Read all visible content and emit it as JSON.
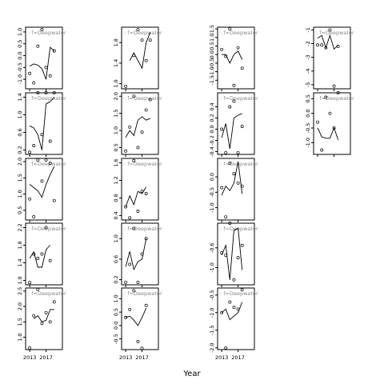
{
  "chart_data": {
    "type": "line",
    "xlabel": "Year",
    "x_ticks": [
      2013,
      2017
    ],
    "xlim": [
      2012,
      2021
    ],
    "panels": [
      {
        "col": 0,
        "row": 0,
        "strip": "f=Deepwater",
        "ylim": [
          -1.4,
          1.2
        ],
        "yticks": [
          1.0,
          0.5,
          0.0,
          -0.5,
          -1.0
        ],
        "line": {
          "x": [
            2013,
            2014,
            2015,
            2016,
            2017,
            2018,
            2019
          ],
          "y": [
            -0.45,
            -0.35,
            -0.4,
            -0.55,
            -1.0,
            0.35,
            0.2
          ]
        },
        "points": {
          "x": [
            2013,
            2014,
            2015,
            2016,
            2017,
            2018,
            2019
          ],
          "y": [
            -0.75,
            -1.15,
            0.4,
            1.1,
            -0.5,
            -0.85,
            0.2
          ]
        }
      },
      {
        "col": 1,
        "row": 0,
        "strip": "f=Deepwater",
        "ylim": [
          0.9,
          2.1
        ],
        "yticks": [
          1.0,
          1.4,
          1.8
        ],
        "line": {
          "x": [
            2014,
            2015,
            2017,
            2018,
            2019
          ],
          "y": [
            1.45,
            1.6,
            1.3,
            1.8,
            2.0
          ]
        },
        "points": {
          "x": [
            2013,
            2015,
            2016,
            2017,
            2018,
            2019
          ],
          "y": [
            0.95,
            1.55,
            2.05,
            1.85,
            1.45,
            1.85
          ]
        }
      },
      {
        "col": 2,
        "row": 0,
        "strip": "f=Deepwater",
        "ylim": [
          -2.0,
          1.6
        ],
        "yticks": [
          1.5,
          1.0,
          0.5,
          0.0,
          -0.5,
          -1.0,
          -1.5
        ],
        "line": {
          "x": [
            2013,
            2014,
            2015,
            2016,
            2017,
            2018
          ],
          "y": [
            0.0,
            0.0,
            -0.5,
            0.0,
            0.2,
            -0.3
          ]
        },
        "points": {
          "x": [
            2013,
            2014,
            2015,
            2016,
            2017,
            2018
          ],
          "y": [
            0.3,
            -0.1,
            1.5,
            -1.8,
            0.4,
            -0.8
          ]
        }
      },
      {
        "col": 3,
        "row": 0,
        "strip": "f=Deepwater",
        "ylim": [
          -5.3,
          -0.8
        ],
        "yticks": [
          -1,
          -2,
          -3,
          -4,
          -5
        ],
        "line": {
          "x": [
            2013,
            2014,
            2015,
            2016,
            2017,
            2018
          ],
          "y": [
            -1.6,
            -1.4,
            -2.3,
            -1.4,
            -2.4,
            -2.1
          ]
        },
        "points": {
          "x": [
            2013,
            2014,
            2015,
            2016,
            2017,
            2018
          ],
          "y": [
            -2.1,
            -2.1,
            -2.3,
            -1.0,
            -5.1,
            -2.2
          ]
        }
      },
      {
        "col": 0,
        "row": 1,
        "strip": "f=Deepwater",
        "ylim": [
          0.1,
          1.5
        ],
        "yticks": [
          1.4,
          1.0,
          0.6,
          0.2
        ],
        "line": {
          "x": [
            2013,
            2014,
            2015,
            2016,
            2017,
            2018,
            2019
          ],
          "y": [
            0.75,
            0.7,
            0.55,
            0.2,
            1.25,
            1.3,
            1.4
          ]
        },
        "points": {
          "x": [
            2013,
            2014,
            2015,
            2016,
            2017,
            2018,
            2019
          ],
          "y": [
            0.15,
            0.3,
            1.5,
            0.55,
            1.5,
            0.4,
            1.5
          ]
        }
      },
      {
        "col": 1,
        "row": 1,
        "strip": "f=Deepwater",
        "ylim": [
          0.3,
          2.1
        ],
        "yticks": [
          2.0,
          1.5,
          1.0,
          0.5
        ],
        "line": {
          "x": [
            2013,
            2014,
            2015,
            2016,
            2017,
            2018,
            2019
          ],
          "y": [
            0.8,
            1.0,
            0.85,
            1.3,
            1.4,
            1.3,
            1.35
          ]
        },
        "points": {
          "x": [
            2013,
            2014,
            2015,
            2016,
            2017,
            2018,
            2019
          ],
          "y": [
            0.4,
            1.1,
            2.0,
            0.5,
            0.95,
            1.6,
            1.9
          ]
        }
      },
      {
        "col": 2,
        "row": 1,
        "strip": "f=Deepwater",
        "ylim": [
          -0.45,
          0.65
        ],
        "yticks": [
          0.4,
          0.2,
          0.0,
          -0.2,
          -0.4
        ],
        "line": {
          "x": [
            2013,
            2014,
            2015,
            2016,
            2017,
            2018
          ],
          "y": [
            -0.15,
            0.1,
            -0.35,
            0.2,
            0.25,
            0.28
          ]
        },
        "points": {
          "x": [
            2013,
            2014,
            2015,
            2016,
            2017,
            2018
          ],
          "y": [
            0.0,
            -0.42,
            0.4,
            0.5,
            -0.42,
            0.05
          ]
        }
      },
      {
        "col": 3,
        "row": 1,
        "strip": "f=Deepwater",
        "ylim": [
          -1.4,
          0.7
        ],
        "yticks": [
          0.5,
          0.0,
          -0.5,
          -1.0
        ],
        "line": {
          "x": [
            2013,
            2014,
            2015,
            2016,
            2017,
            2018
          ],
          "y": [
            -0.5,
            -0.8,
            -0.85,
            -0.85,
            -0.5,
            -0.9
          ]
        },
        "points": {
          "x": [
            2013,
            2014,
            2015,
            2016,
            2017,
            2018
          ],
          "y": [
            -0.3,
            -1.25,
            0.55,
            0.0,
            -0.5,
            0.7
          ]
        }
      },
      {
        "col": 0,
        "row": 2,
        "strip": "f=Deepwater",
        "ylim": [
          0.2,
          2.1
        ],
        "yticks": [
          2.0,
          1.5,
          1.0,
          0.5
        ],
        "line": {
          "x": [
            2013,
            2014,
            2015,
            2016,
            2017,
            2018,
            2019
          ],
          "y": [
            1.3,
            1.2,
            1.1,
            0.9,
            1.3,
            1.6,
            1.85
          ]
        },
        "points": {
          "x": [
            2013,
            2014,
            2015,
            2016,
            2017,
            2018,
            2019
          ],
          "y": [
            0.85,
            0.3,
            2.05,
            1.4,
            2.05,
            1.95,
            0.8
          ]
        }
      },
      {
        "col": 1,
        "row": 2,
        "strip": "f=Deepwater",
        "ylim": [
          0.3,
          1.7
        ],
        "yticks": [
          1.6,
          1.2,
          0.8,
          0.4
        ],
        "line": {
          "x": [
            2013,
            2014,
            2015,
            2016,
            2017,
            2018
          ],
          "y": [
            0.6,
            0.85,
            0.65,
            0.95,
            0.9,
            1.05
          ]
        },
        "points": {
          "x": [
            2013,
            2014,
            2015,
            2016,
            2017,
            2018
          ],
          "y": [
            0.6,
            0.35,
            1.65,
            0.5,
            0.95,
            0.9
          ]
        }
      },
      {
        "col": 2,
        "row": 2,
        "strip": "f=Deepwater",
        "ylim": [
          -1.4,
          0.6
        ],
        "yticks": [
          0.0,
          -0.5,
          -1.0
        ],
        "line": {
          "x": [
            2013,
            2014,
            2015,
            2016,
            2017,
            2018
          ],
          "y": [
            -0.6,
            -0.3,
            -0.45,
            -0.2,
            0.5,
            -0.55
          ]
        },
        "points": {
          "x": [
            2013,
            2014,
            2015,
            2016,
            2017,
            2018
          ],
          "y": [
            -0.35,
            -1.3,
            0.45,
            0.1,
            -0.2,
            -0.3
          ]
        }
      },
      {
        "col": 0,
        "row": 3,
        "strip": "f=Deepwater",
        "ylim": [
          0.9,
          2.3
        ],
        "yticks": [
          2.2,
          1.8,
          1.4,
          1.0
        ],
        "line": {
          "x": [
            2013,
            2014,
            2015,
            2016,
            2017,
            2018
          ],
          "y": [
            1.5,
            1.65,
            1.3,
            1.3,
            1.7,
            1.8
          ]
        },
        "points": {
          "x": [
            2013,
            2014,
            2015,
            2016,
            2017,
            2018
          ],
          "y": [
            0.95,
            1.6,
            1.5,
            1.6,
            2.2,
            1.45
          ]
        }
      },
      {
        "col": 1,
        "row": 3,
        "strip": "f=Deepwater",
        "ylim": [
          0.1,
          1.3
        ],
        "yticks": [
          1.0,
          0.6,
          0.2
        ],
        "line": {
          "x": [
            2013,
            2014,
            2015,
            2016,
            2017,
            2018
          ],
          "y": [
            0.45,
            0.75,
            0.4,
            0.55,
            0.6,
            1.0
          ]
        },
        "points": {
          "x": [
            2013,
            2014,
            2015,
            2016,
            2017,
            2018
          ],
          "y": [
            0.15,
            0.5,
            1.2,
            0.15,
            0.7,
            1.0
          ]
        }
      },
      {
        "col": 2,
        "row": 3,
        "strip": "f=Deepwater",
        "ylim": [
          -1.35,
          -0.1
        ],
        "yticks": [
          -0.6,
          -1.0
        ],
        "line": {
          "x": [
            2013,
            2014,
            2015,
            2016,
            2017,
            2018
          ],
          "y": [
            -0.75,
            -0.55,
            -1.25,
            -0.25,
            -0.2,
            -1.05
          ]
        },
        "points": {
          "x": [
            2013,
            2014,
            2015,
            2016,
            2017,
            2018
          ],
          "y": [
            -0.7,
            -0.75,
            -0.1,
            -1.25,
            -0.8,
            -0.55
          ]
        }
      },
      {
        "col": 0,
        "row": 4,
        "strip": "f=Deepwater",
        "ylim": [
          0.6,
          2.6
        ],
        "yticks": [
          2.5,
          2.0,
          1.5,
          1.0
        ],
        "line": {
          "x": [
            2014,
            2015,
            2016,
            2017,
            2018,
            2019
          ],
          "y": [
            1.6,
            1.7,
            1.5,
            1.55,
            1.9,
            1.9
          ]
        },
        "points": {
          "x": [
            2013,
            2014,
            2015,
            2016,
            2017,
            2018,
            2019
          ],
          "y": [
            0.65,
            1.7,
            2.55,
            1.45,
            1.8,
            1.5,
            2.15
          ]
        }
      },
      {
        "col": 1,
        "row": 4,
        "strip": "f=Deepwater",
        "ylim": [
          -0.9,
          1.4
        ],
        "yticks": [
          1.0,
          0.5,
          0.0,
          -0.5
        ],
        "line": {
          "x": [
            2013,
            2014,
            2015,
            2016,
            2017,
            2018
          ],
          "y": [
            0.3,
            0.35,
            0.2,
            0.0,
            0.3,
            0.65
          ]
        },
        "points": {
          "x": [
            2013,
            2014,
            2015,
            2016,
            2017,
            2018
          ],
          "y": [
            0.3,
            0.6,
            1.3,
            -0.6,
            -0.85,
            0.75
          ]
        }
      },
      {
        "col": 2,
        "row": 4,
        "strip": "f=Deepwater",
        "ylim": [
          -2.05,
          -0.3
        ],
        "yticks": [
          -0.5,
          -1.0,
          -1.5,
          -2.0
        ],
        "line": {
          "x": [
            2013,
            2014,
            2015,
            2016,
            2017,
            2018
          ],
          "y": [
            -1.0,
            -0.9,
            -1.2,
            -1.1,
            -1.0,
            -0.7
          ]
        },
        "points": {
          "x": [
            2013,
            2014,
            2015,
            2016,
            2017,
            2018
          ],
          "y": [
            -1.0,
            -2.0,
            -0.7,
            -0.85,
            -0.9,
            -0.35
          ]
        }
      }
    ]
  }
}
